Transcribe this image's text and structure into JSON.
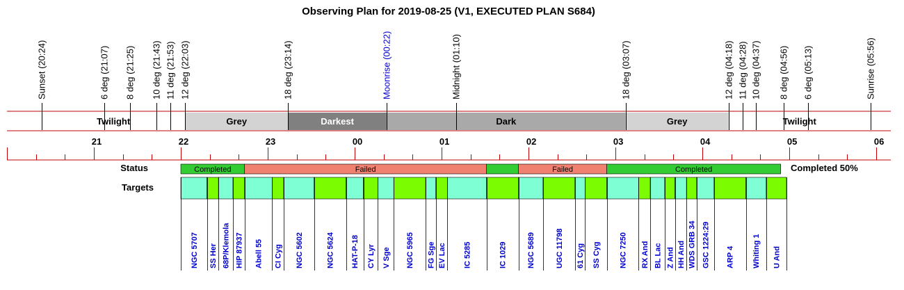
{
  "title": "Observing Plan for 2019-08-25 (V1, EXECUTED PLAN S684)",
  "chart_data": {
    "type": "table",
    "time_axis": {
      "start": "20:00",
      "end": "06:10",
      "tick_labels": [
        "21",
        "22",
        "23",
        "00",
        "01",
        "02",
        "03",
        "04",
        "05",
        "06"
      ]
    },
    "events": [
      {
        "label": "Sunset (20:24)",
        "time": "20:24",
        "color": "#000000"
      },
      {
        "label": "6 deg (21:07)",
        "time": "21:07",
        "color": "#000000"
      },
      {
        "label": "8 deg (21:25)",
        "time": "21:25",
        "color": "#000000"
      },
      {
        "label": "10 deg (21:43)",
        "time": "21:43",
        "color": "#000000"
      },
      {
        "label": "11 deg (21:53)",
        "time": "21:53",
        "color": "#000000"
      },
      {
        "label": "12 deg (22:03)",
        "time": "22:03",
        "color": "#000000"
      },
      {
        "label": "18 deg (23:14)",
        "time": "23:14",
        "color": "#000000"
      },
      {
        "label": "Moonrise (00:22)",
        "time": "00:22",
        "color": "#0000cc"
      },
      {
        "label": "Midnight (01:10)",
        "time": "01:10",
        "color": "#000000"
      },
      {
        "label": "18 deg (03:07)",
        "time": "03:07",
        "color": "#000000"
      },
      {
        "label": "12 deg (04:18)",
        "time": "04:18",
        "color": "#000000"
      },
      {
        "label": "11 deg (04:28)",
        "time": "04:28",
        "color": "#000000"
      },
      {
        "label": "10 deg (04:37)",
        "time": "04:37",
        "color": "#000000"
      },
      {
        "label": "8 deg (04:56)",
        "time": "04:56",
        "color": "#000000"
      },
      {
        "label": "6 deg (05:13)",
        "time": "05:13",
        "color": "#000000"
      },
      {
        "label": "Sunrise (05:56)",
        "time": "05:56",
        "color": "#000000"
      }
    ],
    "sky_periods": [
      {
        "label": "",
        "start": "20:00",
        "end": "20:24",
        "color": "#ffffff",
        "text_color": "#000000"
      },
      {
        "label": "Twilight",
        "start": "20:24",
        "end": "22:03",
        "color": "#ffffff",
        "text_color": "#000000"
      },
      {
        "label": "Grey",
        "start": "22:03",
        "end": "23:14",
        "color": "#d3d3d3",
        "text_color": "#000000"
      },
      {
        "label": "Darkest",
        "start": "23:14",
        "end": "00:22",
        "color": "#808080",
        "text_color": "#ffffff"
      },
      {
        "label": "Dark",
        "start": "00:22",
        "end": "03:07",
        "color": "#a9a9a9",
        "text_color": "#000000"
      },
      {
        "label": "Grey",
        "start": "03:07",
        "end": "04:18",
        "color": "#d3d3d3",
        "text_color": "#000000"
      },
      {
        "label": "Twilight",
        "start": "04:18",
        "end": "05:56",
        "color": "#ffffff",
        "text_color": "#000000"
      },
      {
        "label": "",
        "start": "05:56",
        "end": "06:10",
        "color": "#ffffff",
        "text_color": "#000000"
      }
    ],
    "status_row_label": "Status",
    "status": [
      {
        "label": "Completed",
        "start": "22:00",
        "end": "22:44",
        "color": "#33cc33"
      },
      {
        "label": "Failed",
        "start": "22:44",
        "end": "01:31",
        "color": "#f08070"
      },
      {
        "label": "",
        "start": "01:31",
        "end": "01:53",
        "color": "#33cc33"
      },
      {
        "label": "Failed",
        "start": "01:53",
        "end": "02:54",
        "color": "#f08070"
      },
      {
        "label": "Completed",
        "start": "02:54",
        "end": "04:54",
        "color": "#33cc33"
      }
    ],
    "completion_summary": "Completed 50%",
    "targets_row_label": "Targets",
    "targets": [
      {
        "name": "NGC 5707",
        "start": "22:00",
        "end": "22:18",
        "color": "#7fffd4"
      },
      {
        "name": "SS Her",
        "start": "22:18",
        "end": "22:26",
        "color": "#7cfc00"
      },
      {
        "name": "68P/Klemola",
        "start": "22:26",
        "end": "22:36",
        "color": "#7fffd4"
      },
      {
        "name": "HIP 87937",
        "start": "22:36",
        "end": "22:44",
        "color": "#7cfc00"
      },
      {
        "name": "Abell 55",
        "start": "22:44",
        "end": "23:03",
        "color": "#7fffd4"
      },
      {
        "name": "CI Cyg",
        "start": "23:03",
        "end": "23:11",
        "color": "#7cfc00"
      },
      {
        "name": "NGC 5602",
        "start": "23:11",
        "end": "23:32",
        "color": "#7fffd4"
      },
      {
        "name": "NGC 5624",
        "start": "23:32",
        "end": "23:54",
        "color": "#7cfc00"
      },
      {
        "name": "HAT-P-18",
        "start": "23:54",
        "end": "00:06",
        "color": "#7fffd4"
      },
      {
        "name": "CY Lyr",
        "start": "00:06",
        "end": "00:16",
        "color": "#7cfc00"
      },
      {
        "name": "V Sge",
        "start": "00:16",
        "end": "00:27",
        "color": "#7fffd4"
      },
      {
        "name": "NGC 5965",
        "start": "00:27",
        "end": "00:49",
        "color": "#7cfc00"
      },
      {
        "name": "FG Sge",
        "start": "00:49",
        "end": "00:56",
        "color": "#7fffd4"
      },
      {
        "name": "EV Lac",
        "start": "00:56",
        "end": "01:04",
        "color": "#7cfc00"
      },
      {
        "name": "IC 5285",
        "start": "01:04",
        "end": "01:31",
        "color": "#7fffd4"
      },
      {
        "name": "IC 1029",
        "start": "01:31",
        "end": "01:53",
        "color": "#7cfc00"
      },
      {
        "name": "NGC 5689",
        "start": "01:53",
        "end": "02:10",
        "color": "#7fffd4"
      },
      {
        "name": "UGC 11798",
        "start": "02:10",
        "end": "02:32",
        "color": "#7cfc00"
      },
      {
        "name": "61 Cyg",
        "start": "02:32",
        "end": "02:39",
        "color": "#7fffd4"
      },
      {
        "name": "SS Cyg",
        "start": "02:39",
        "end": "02:54",
        "color": "#7cfc00"
      },
      {
        "name": "NGC 7250",
        "start": "02:54",
        "end": "03:16",
        "color": "#7fffd4"
      },
      {
        "name": "RX And",
        "start": "03:16",
        "end": "03:24",
        "color": "#7cfc00"
      },
      {
        "name": "BL Lac",
        "start": "03:24",
        "end": "03:34",
        "color": "#7fffd4"
      },
      {
        "name": "Z And",
        "start": "03:34",
        "end": "03:41",
        "color": "#7cfc00"
      },
      {
        "name": "HH And",
        "start": "03:41",
        "end": "03:49",
        "color": "#7fffd4"
      },
      {
        "name": "WDS GRB 34",
        "start": "03:49",
        "end": "03:56",
        "color": "#7cfc00"
      },
      {
        "name": "GSC 1224:29",
        "start": "03:56",
        "end": "04:08",
        "color": "#7fffd4"
      },
      {
        "name": "ARP 4",
        "start": "04:08",
        "end": "04:30",
        "color": "#7cfc00"
      },
      {
        "name": "Whiting 1",
        "start": "04:30",
        "end": "04:44",
        "color": "#7fffd4"
      },
      {
        "name": "U And",
        "start": "04:44",
        "end": "04:58",
        "color": "#7cfc00"
      }
    ]
  }
}
